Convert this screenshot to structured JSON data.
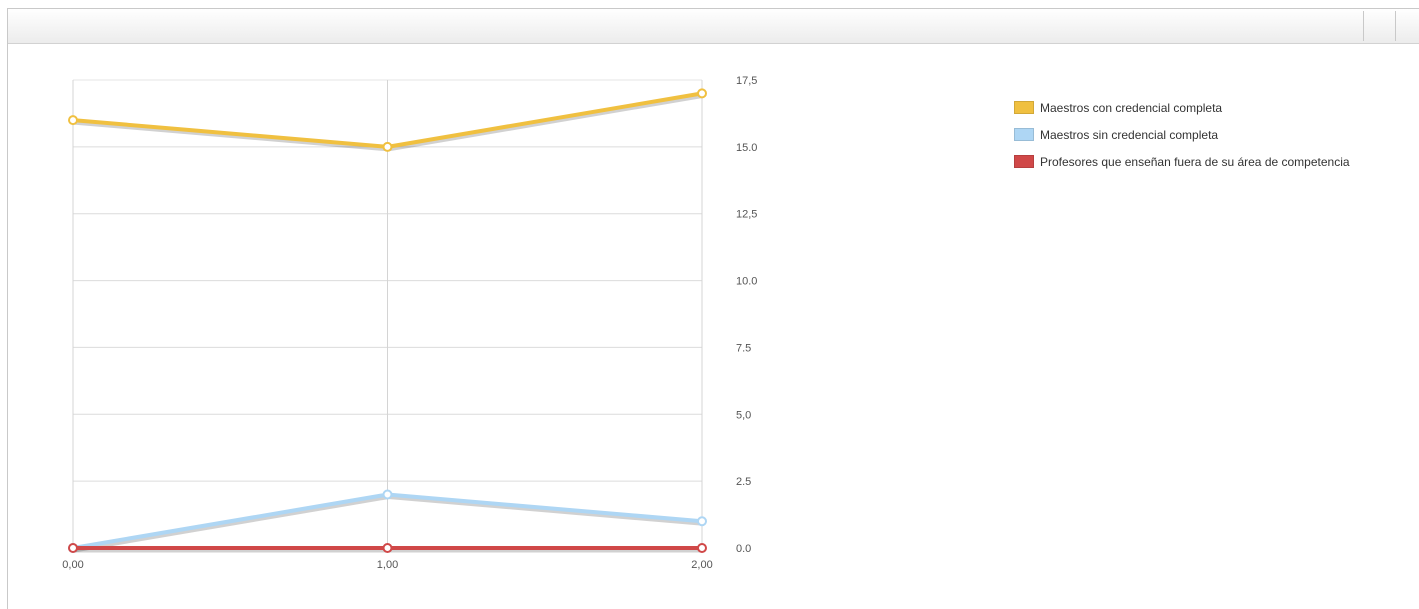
{
  "toolbar": {
    "buttons": [
      {
        "name": "toolbar-button-1",
        "icon": "blank-button-icon"
      },
      {
        "name": "toolbar-button-2",
        "icon": "blank-button-icon"
      }
    ]
  },
  "chart_data": {
    "type": "line",
    "title": "",
    "xlabel": "",
    "ylabel": "",
    "x": [
      0,
      1,
      2
    ],
    "x_tick_labels": [
      "0,00",
      "1,00",
      "2,00"
    ],
    "y_ticks": [
      0,
      2.5,
      5,
      7.5,
      10,
      12.5,
      15,
      17.5
    ],
    "y_tick_labels": [
      "0.0",
      "2.5",
      "5,0",
      "7.5",
      "10.0",
      "12,5",
      "15.0",
      "17,5"
    ],
    "ylim": [
      0,
      17.5
    ],
    "xlim": [
      0,
      2
    ],
    "y_axis_side": "right",
    "grid": true,
    "legend_position": "right",
    "series": [
      {
        "name": "Maestros con credencial completa",
        "values": [
          16,
          15,
          17
        ],
        "color": "#f0c040"
      },
      {
        "name": "Maestros sin credencial completa",
        "values": [
          0,
          2,
          1
        ],
        "color": "#aed6f4"
      },
      {
        "name": "Profesores que enseñan fuera de su área de competencia",
        "values": [
          0,
          0,
          0
        ],
        "color": "#d04848"
      }
    ]
  }
}
